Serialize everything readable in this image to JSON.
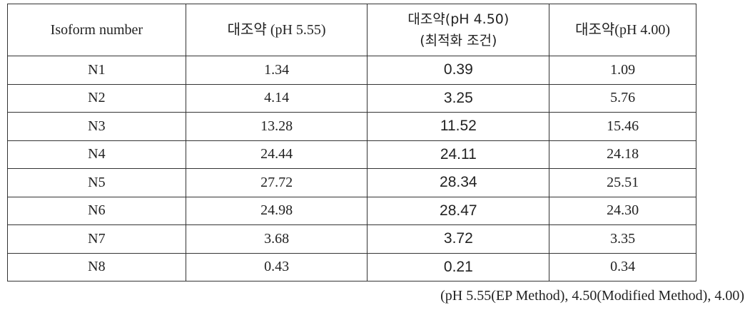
{
  "table": {
    "header": [
      "Isoform number",
      "대조약 (pH 5.55)",
      "대조약(pH 4.50)\n(최적화 조건)",
      "대조약(pH 4.00)"
    ],
    "rows": [
      [
        "N1",
        "1.34",
        "0.39",
        "1.09"
      ],
      [
        "N2",
        "4.14",
        "3.25",
        "5.76"
      ],
      [
        "N3",
        "13.28",
        "11.52",
        "15.46"
      ],
      [
        "N4",
        "24.44",
        "24.11",
        "24.18"
      ],
      [
        "N5",
        "27.72",
        "28.34",
        "25.51"
      ],
      [
        "N6",
        "24.98",
        "28.47",
        "24.30"
      ],
      [
        "N7",
        "3.68",
        "3.72",
        "3.35"
      ],
      [
        "N8",
        "0.43",
        "0.21",
        "0.34"
      ]
    ]
  },
  "footnote": "(pH 5.55(EP Method), 4.50(Modified Method), 4.00)"
}
